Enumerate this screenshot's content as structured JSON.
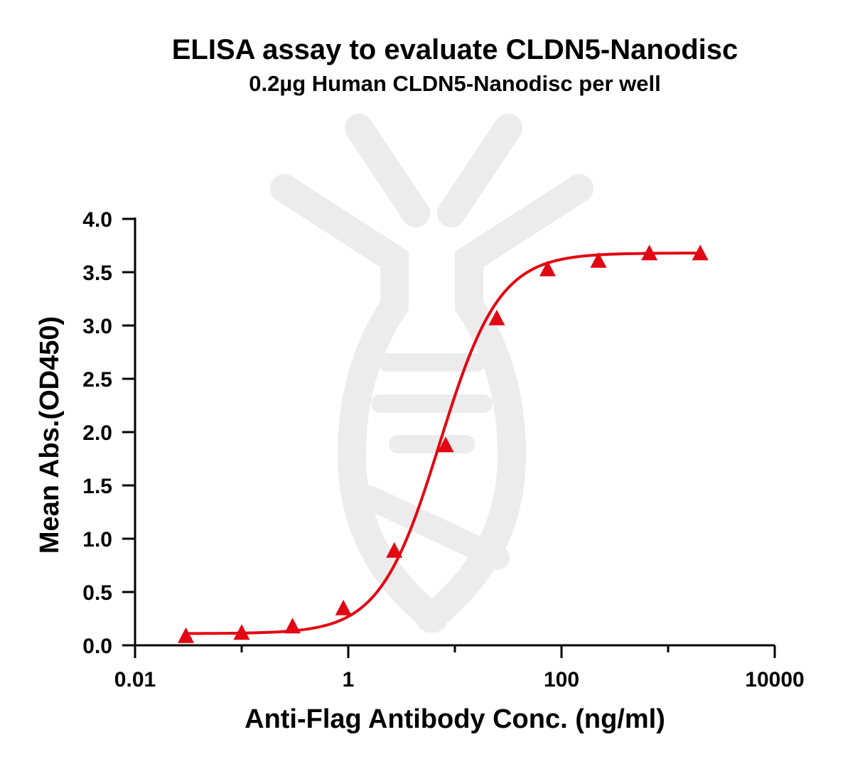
{
  "chart_data": {
    "type": "scatter",
    "title": "ELISA assay to evaluate CLDN5-Nanodisc",
    "subtitle": "0.2µg Human CLDN5-Nanodisc per well",
    "xlabel": "Anti-Flag Antibody Conc. (ng/ml)",
    "ylabel": "Mean Abs.(OD450)",
    "x_scale": "log",
    "xlim": [
      0.01,
      10000
    ],
    "ylim": [
      0.0,
      4.0
    ],
    "x_ticks": [
      0.01,
      1,
      100,
      10000
    ],
    "x_tick_labels": [
      "0.01",
      "1",
      "100",
      "10000"
    ],
    "y_ticks": [
      0.0,
      0.5,
      1.0,
      1.5,
      2.0,
      2.5,
      3.0,
      3.5,
      4.0
    ],
    "y_tick_labels": [
      "0.0",
      "0.5",
      "1.0",
      "1.5",
      "2.0",
      "2.5",
      "3.0",
      "3.5",
      "4.0"
    ],
    "grid": false,
    "series": [
      {
        "marker": "triangle",
        "color": "#e30613",
        "x": [
          0.03,
          0.1,
          0.3,
          0.9,
          2.7,
          8.2,
          24.7,
          74.1,
          222,
          667,
          2000
        ],
        "y": [
          0.08,
          0.11,
          0.17,
          0.34,
          0.88,
          1.87,
          3.06,
          3.52,
          3.6,
          3.67,
          3.67
        ]
      }
    ],
    "fit": {
      "type": "4PL",
      "color": "#e30613",
      "bottom": 0.11,
      "top": 3.68,
      "ec50": 7.2,
      "hill": 1.55
    }
  }
}
